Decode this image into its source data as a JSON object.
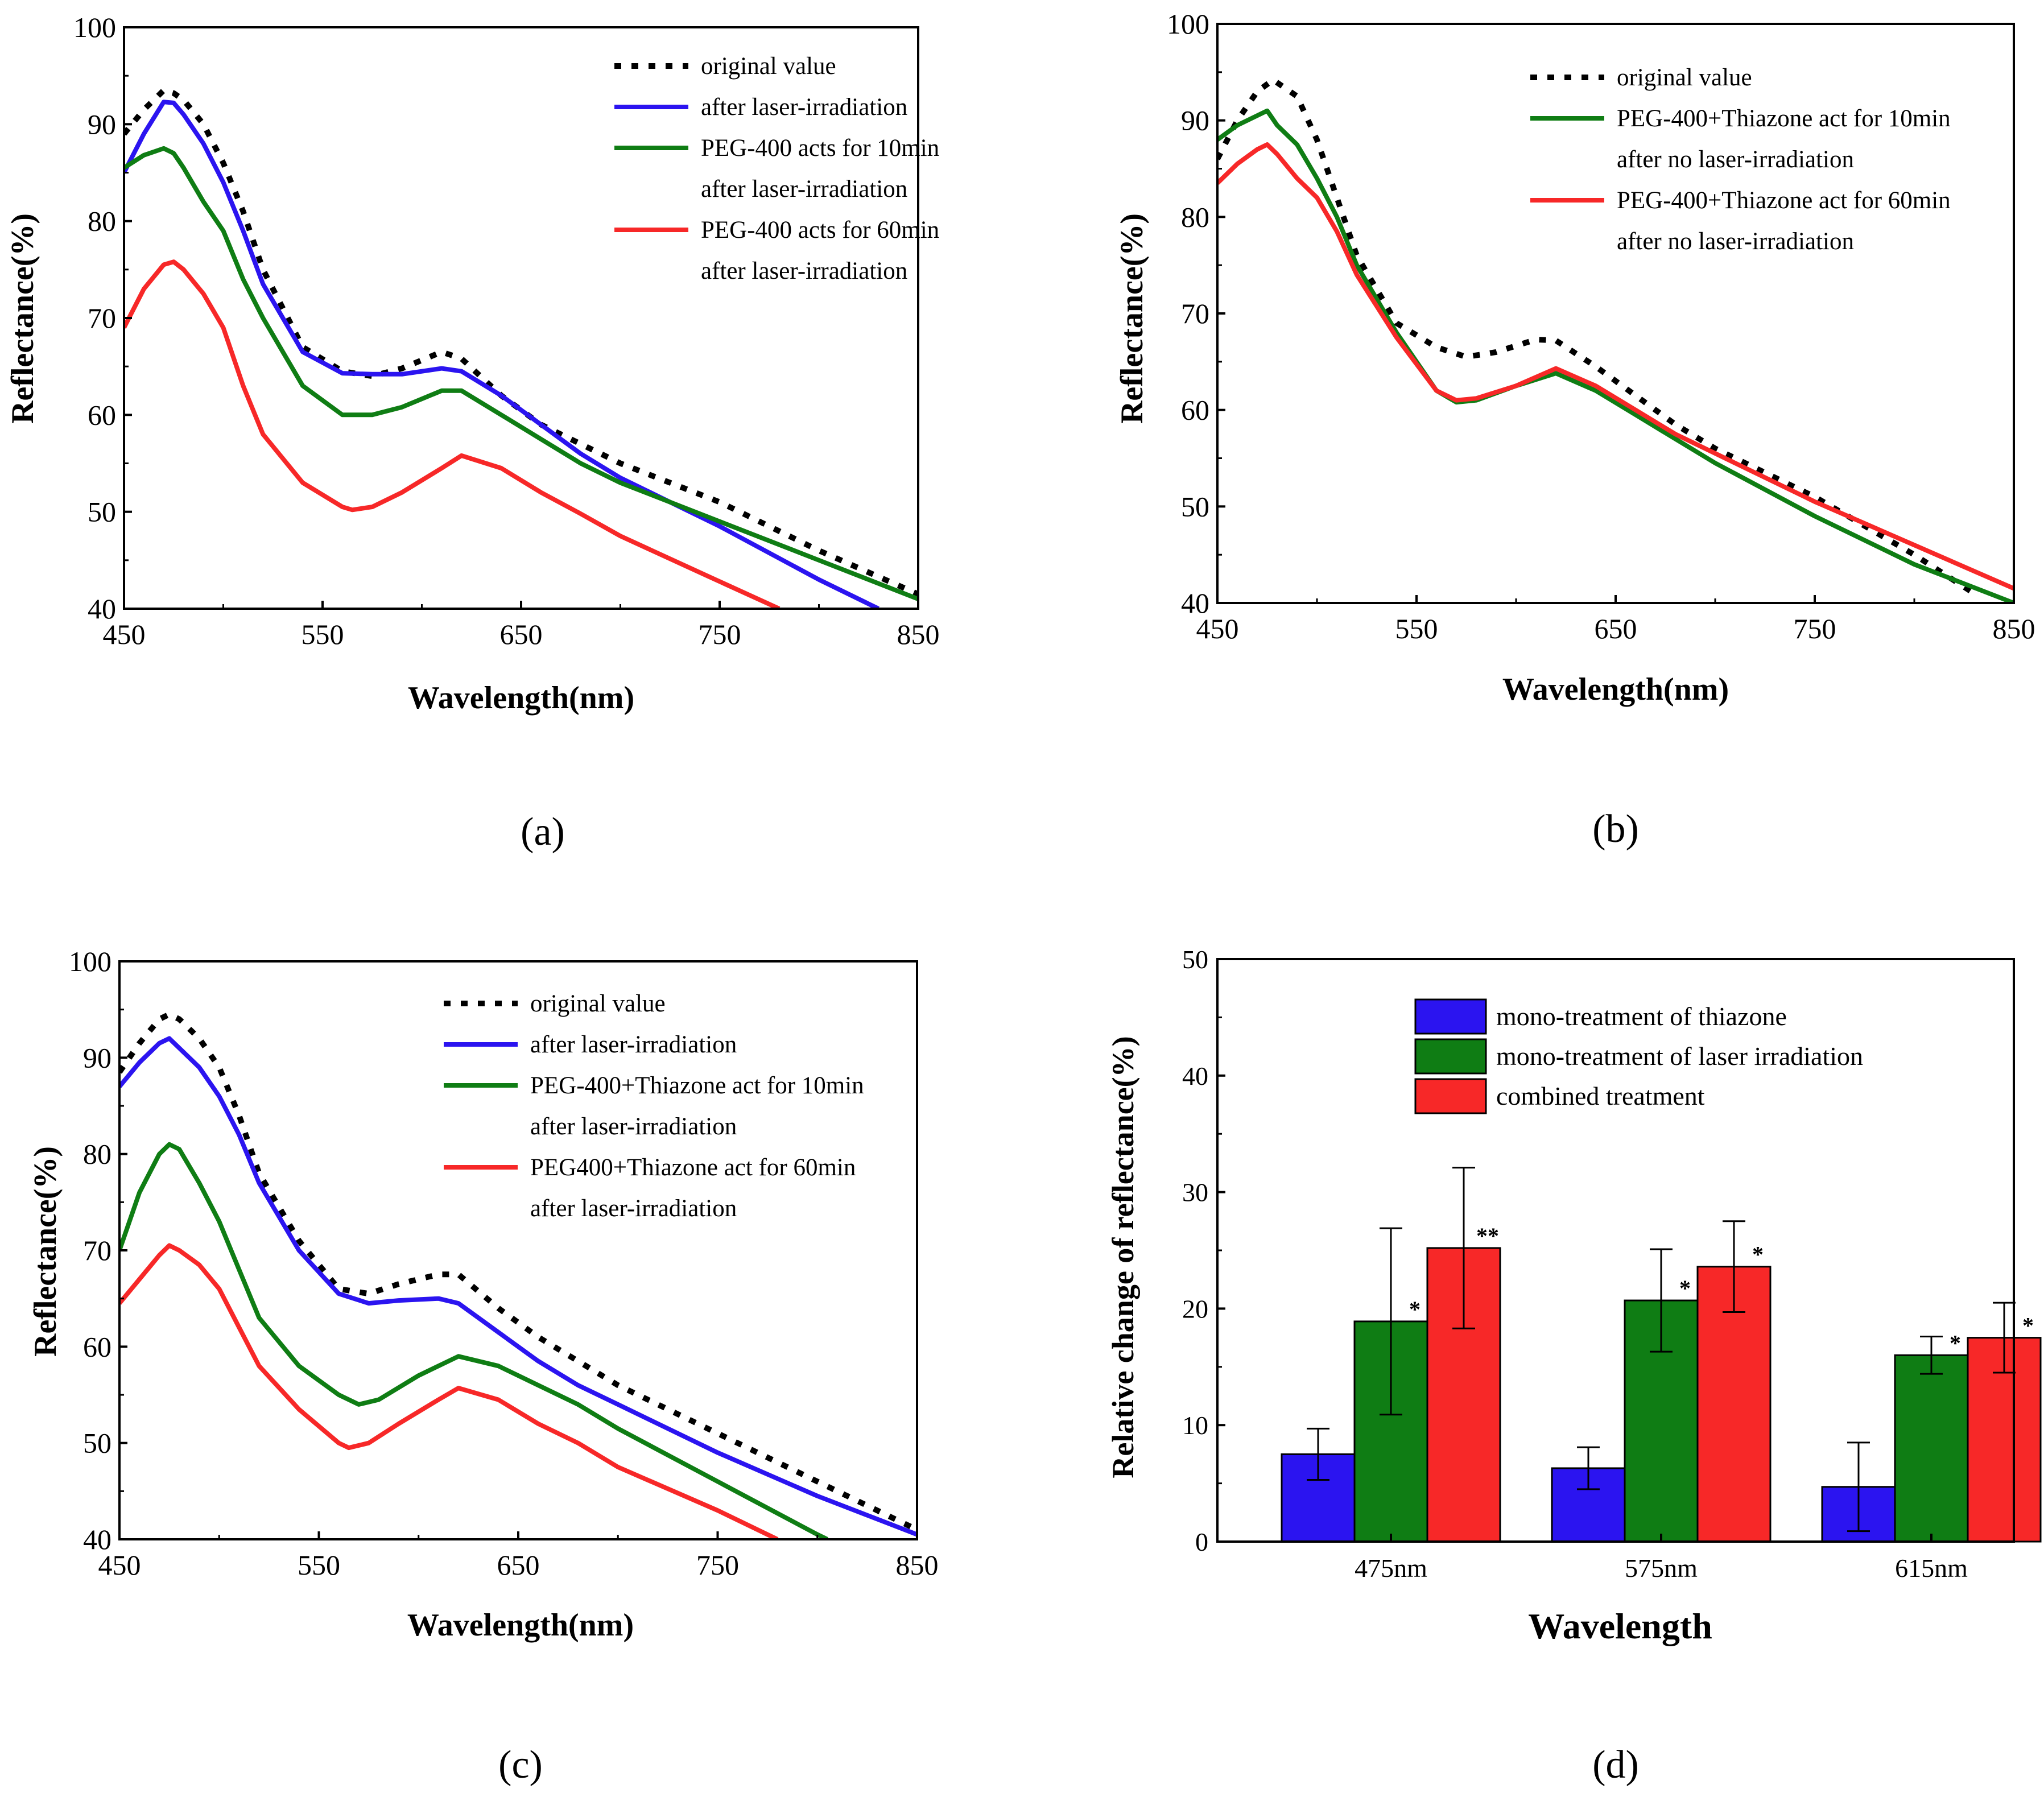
{
  "colors": {
    "original": "#000000",
    "laser": "#2b14f0",
    "green": "#0f7d14",
    "red": "#f72828"
  },
  "chart_data": [
    {
      "id": "a",
      "type": "line",
      "panel_label": "(a)",
      "xlabel": "Wavelength(nm)",
      "ylabel": "Reflectance(%)",
      "xlim": [
        450,
        850
      ],
      "ylim": [
        40,
        100
      ],
      "xticks": [
        "450",
        "550",
        "650",
        "750",
        "850"
      ],
      "yticks": [
        "40",
        "50",
        "60",
        "70",
        "80",
        "90",
        "100"
      ],
      "legend_position": "top-right",
      "series": [
        {
          "name": "original value",
          "legend": [
            "original value"
          ],
          "style": "dotted",
          "color_key": "original",
          "x": [
            450,
            460,
            470,
            475,
            480,
            490,
            500,
            510,
            520,
            540,
            560,
            575,
            590,
            610,
            620,
            640,
            660,
            680,
            700,
            750,
            800,
            850
          ],
          "y": [
            89,
            91.5,
            93.5,
            93.2,
            92.5,
            90,
            86,
            81,
            75,
            67,
            64.5,
            64,
            64.8,
            66.5,
            65.8,
            62,
            59,
            57,
            55,
            51,
            46,
            41.5
          ]
        },
        {
          "name": "after laser-irradiation",
          "legend": [
            "after laser-irradiation"
          ],
          "style": "solid",
          "color_key": "laser",
          "x": [
            450,
            460,
            470,
            475,
            480,
            490,
            500,
            510,
            520,
            540,
            560,
            575,
            590,
            610,
            620,
            640,
            660,
            680,
            700,
            750,
            800,
            830
          ],
          "y": [
            85,
            89,
            92.3,
            92.2,
            91,
            88,
            84,
            79,
            73.5,
            66.5,
            64.3,
            64.2,
            64.2,
            64.8,
            64.5,
            62,
            59,
            56,
            53.5,
            48.5,
            43,
            40
          ]
        },
        {
          "name": "PEG-400 acts for 10min after laser-irradiation",
          "legend": [
            "PEG-400 acts for 10min",
            "after laser-irradiation"
          ],
          "style": "solid",
          "color_key": "green",
          "x": [
            450,
            460,
            470,
            475,
            480,
            490,
            500,
            510,
            520,
            540,
            560,
            575,
            590,
            610,
            620,
            640,
            660,
            680,
            700,
            750,
            800,
            850
          ],
          "y": [
            85.5,
            86.8,
            87.5,
            87,
            85.5,
            82,
            79,
            74,
            70,
            63,
            60,
            60,
            60.8,
            62.5,
            62.5,
            60,
            57.5,
            55,
            53,
            49,
            45,
            41
          ]
        },
        {
          "name": "PEG-400 acts for 60min after laser-irradiation",
          "legend": [
            "PEG-400 acts for 60min",
            "after laser-irradiation"
          ],
          "style": "solid",
          "color_key": "red",
          "x": [
            450,
            460,
            470,
            475,
            480,
            490,
            500,
            510,
            520,
            540,
            560,
            565,
            575,
            590,
            610,
            620,
            640,
            660,
            680,
            700,
            750,
            780
          ],
          "y": [
            69,
            73,
            75.5,
            75.8,
            75,
            72.5,
            69,
            63,
            58,
            53,
            50.5,
            50.2,
            50.5,
            52,
            54.5,
            55.8,
            54.5,
            52,
            49.8,
            47.5,
            42.8,
            40
          ]
        }
      ]
    },
    {
      "id": "b",
      "type": "line",
      "panel_label": "(b)",
      "xlabel": "Wavelength(nm)",
      "ylabel": "Reflectance(%)",
      "xlim": [
        450,
        850
      ],
      "ylim": [
        40,
        100
      ],
      "xticks": [
        "450",
        "550",
        "650",
        "750",
        "850"
      ],
      "yticks": [
        "40",
        "50",
        "60",
        "70",
        "80",
        "90",
        "100"
      ],
      "legend_position": "top-right",
      "series": [
        {
          "name": "original value",
          "legend": [
            "original value"
          ],
          "style": "dotted",
          "color_key": "original",
          "x": [
            450,
            460,
            470,
            478,
            490,
            500,
            510,
            520,
            540,
            560,
            575,
            590,
            610,
            620,
            640,
            660,
            680,
            700,
            750,
            800,
            830
          ],
          "y": [
            86,
            90,
            93,
            94.2,
            92.5,
            88,
            82,
            76,
            69,
            66.5,
            65.5,
            66,
            67.3,
            67.2,
            64.5,
            61.5,
            58.5,
            56,
            51,
            45,
            41
          ]
        },
        {
          "name": "PEG-400+Thiazone act for 10min after no laser-irradiation",
          "legend": [
            "PEG-400+Thiazone act for 10min",
            "after no laser-irradiation"
          ],
          "style": "solid",
          "color_key": "green",
          "x": [
            450,
            460,
            470,
            475,
            480,
            490,
            500,
            510,
            520,
            540,
            560,
            570,
            580,
            600,
            620,
            640,
            660,
            680,
            700,
            750,
            800,
            850
          ],
          "y": [
            88,
            89.5,
            90.5,
            91,
            89.5,
            87.5,
            84,
            80,
            75,
            68,
            62,
            60.8,
            61,
            62.5,
            63.8,
            62,
            59.5,
            57,
            54.5,
            49,
            44,
            40
          ]
        },
        {
          "name": "PEG-400+Thiazone act for 60min after no laser-irradiation",
          "legend": [
            "PEG-400+Thiazone act for 60min",
            "after no laser-irradiation"
          ],
          "style": "solid",
          "color_key": "red",
          "x": [
            450,
            460,
            470,
            475,
            480,
            490,
            500,
            510,
            520,
            540,
            560,
            570,
            580,
            600,
            620,
            640,
            660,
            680,
            700,
            750,
            800,
            850
          ],
          "y": [
            83.5,
            85.5,
            87,
            87.5,
            86.5,
            84,
            82,
            78.5,
            74,
            67.5,
            62,
            61,
            61.2,
            62.5,
            64.3,
            62.5,
            60,
            57.5,
            55.5,
            50.5,
            46,
            41.5
          ]
        }
      ]
    },
    {
      "id": "c",
      "type": "line",
      "panel_label": "(c)",
      "xlabel": "Wavelength(nm)",
      "ylabel": "Reflectance(%)",
      "xlim": [
        450,
        850
      ],
      "ylim": [
        40,
        100
      ],
      "xticks": [
        "450",
        "550",
        "650",
        "750",
        "850"
      ],
      "yticks": [
        "40",
        "50",
        "60",
        "70",
        "80",
        "90",
        "100"
      ],
      "legend_position": "top-right",
      "series": [
        {
          "name": "original value",
          "legend": [
            "original value"
          ],
          "style": "dotted",
          "color_key": "original",
          "x": [
            450,
            460,
            470,
            475,
            480,
            490,
            500,
            510,
            520,
            540,
            560,
            575,
            590,
            610,
            620,
            640,
            660,
            680,
            700,
            750,
            800,
            850
          ],
          "y": [
            88.5,
            91.5,
            94,
            94.5,
            94,
            92,
            89,
            84,
            78,
            71,
            66,
            65.5,
            66.5,
            67.5,
            67.5,
            64,
            61,
            58.5,
            56,
            51,
            46,
            41
          ]
        },
        {
          "name": "after laser-irradiation",
          "legend": [
            "after laser-irradiation"
          ],
          "style": "solid",
          "color_key": "laser",
          "x": [
            450,
            460,
            470,
            475,
            480,
            490,
            500,
            510,
            520,
            540,
            560,
            575,
            590,
            610,
            620,
            640,
            660,
            680,
            700,
            750,
            800,
            850
          ],
          "y": [
            87,
            89.5,
            91.5,
            92,
            91,
            89,
            86,
            82,
            77,
            70,
            65.5,
            64.5,
            64.8,
            65,
            64.5,
            61.5,
            58.5,
            56,
            54,
            49,
            44.5,
            40.5
          ]
        },
        {
          "name": "PEG-400+Thiazone act for 10min after laser-irradiation",
          "legend": [
            "PEG-400+Thiazone act for 10min",
            "after laser-irradiation"
          ],
          "style": "solid",
          "color_key": "green",
          "x": [
            450,
            460,
            470,
            475,
            480,
            490,
            500,
            510,
            520,
            540,
            560,
            570,
            580,
            600,
            620,
            640,
            660,
            680,
            700,
            750,
            800,
            805
          ],
          "y": [
            70,
            76,
            80,
            81,
            80.5,
            77,
            73,
            68,
            63,
            58,
            55,
            54,
            54.5,
            57,
            59,
            58,
            56,
            54,
            51.5,
            46,
            40.5,
            40
          ]
        },
        {
          "name": "PEG400+Thiazone act for 60min after laser-irradiation",
          "legend": [
            "PEG400+Thiazone act for 60min",
            "after laser-irradiation"
          ],
          "style": "solid",
          "color_key": "red",
          "x": [
            450,
            460,
            470,
            475,
            480,
            490,
            500,
            510,
            520,
            540,
            560,
            565,
            575,
            590,
            610,
            620,
            640,
            660,
            680,
            700,
            750,
            780
          ],
          "y": [
            64.5,
            67,
            69.5,
            70.5,
            70,
            68.5,
            66,
            62,
            58,
            53.5,
            50,
            49.5,
            50,
            52,
            54.5,
            55.7,
            54.5,
            52,
            50,
            47.5,
            43,
            40
          ]
        }
      ]
    },
    {
      "id": "d",
      "type": "bar",
      "panel_label": "(d)",
      "xlabel": "Wavelength",
      "ylabel": "Relative change of reflectance(%)",
      "ylim": [
        0,
        50
      ],
      "yticks": [
        "0",
        "10",
        "20",
        "30",
        "40",
        "50"
      ],
      "categories": [
        "475nm",
        "575nm",
        "615nm"
      ],
      "legend_position": "top-right",
      "series": [
        {
          "name": "mono-treatment of thiazone",
          "color_key": "laser",
          "values": [
            7.5,
            6.3,
            4.7
          ],
          "errors": [
            2.2,
            1.8,
            3.8
          ],
          "sig": [
            "",
            "",
            ""
          ]
        },
        {
          "name": "mono-treatment of laser irradiation",
          "color_key": "green",
          "values": [
            18.9,
            20.7,
            16
          ],
          "errors": [
            8,
            4.4,
            1.6
          ],
          "sig": [
            "*",
            "*",
            "*"
          ]
        },
        {
          "name": "combined treatment",
          "color_key": "red",
          "values": [
            25.2,
            23.6,
            17.5
          ],
          "errors": [
            6.9,
            3.9,
            3
          ],
          "sig": [
            "**",
            "*",
            "*"
          ]
        }
      ]
    }
  ]
}
